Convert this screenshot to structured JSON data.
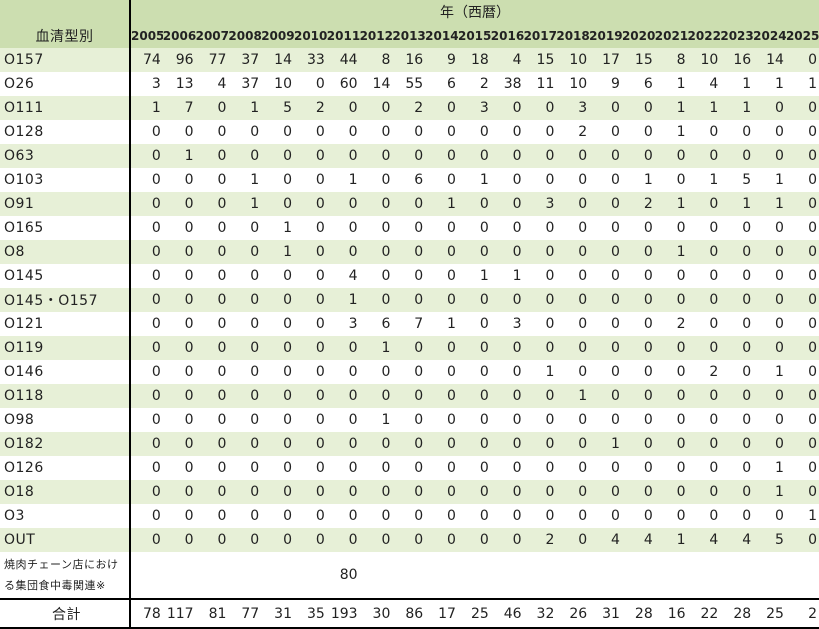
{
  "header": {
    "row_label": "血清型別",
    "group_label": "年（西暦）",
    "years": [
      "2005",
      "2006",
      "2007",
      "2008",
      "2009",
      "2010",
      "2011",
      "2012",
      "2013",
      "2014",
      "2015",
      "2016",
      "2017",
      "2018",
      "2019",
      "2020",
      "2021",
      "2022",
      "2023",
      "2024",
      "2025"
    ]
  },
  "rows": [
    {
      "label": "O157",
      "values": [
        "74",
        "96",
        "77",
        "37",
        "14",
        "33",
        "44",
        "8",
        "16",
        "9",
        "18",
        "4",
        "15",
        "10",
        "17",
        "15",
        "8",
        "10",
        "16",
        "14",
        "0"
      ]
    },
    {
      "label": "O26",
      "values": [
        "3",
        "13",
        "4",
        "37",
        "10",
        "0",
        "60",
        "14",
        "55",
        "6",
        "2",
        "38",
        "11",
        "10",
        "9",
        "6",
        "1",
        "4",
        "1",
        "1",
        "1"
      ]
    },
    {
      "label": "O111",
      "values": [
        "1",
        "7",
        "0",
        "1",
        "5",
        "2",
        "0",
        "0",
        "2",
        "0",
        "3",
        "0",
        "0",
        "3",
        "0",
        "0",
        "1",
        "1",
        "1",
        "0",
        "0"
      ]
    },
    {
      "label": "O128",
      "values": [
        "0",
        "0",
        "0",
        "0",
        "0",
        "0",
        "0",
        "0",
        "0",
        "0",
        "0",
        "0",
        "0",
        "2",
        "0",
        "0",
        "1",
        "0",
        "0",
        "0",
        "0"
      ]
    },
    {
      "label": "O63",
      "values": [
        "0",
        "1",
        "0",
        "0",
        "0",
        "0",
        "0",
        "0",
        "0",
        "0",
        "0",
        "0",
        "0",
        "0",
        "0",
        "0",
        "0",
        "0",
        "0",
        "0",
        "0"
      ]
    },
    {
      "label": "O103",
      "values": [
        "0",
        "0",
        "0",
        "1",
        "0",
        "0",
        "1",
        "0",
        "6",
        "0",
        "1",
        "0",
        "0",
        "0",
        "0",
        "1",
        "0",
        "1",
        "5",
        "1",
        "0"
      ]
    },
    {
      "label": "O91",
      "values": [
        "0",
        "0",
        "0",
        "1",
        "0",
        "0",
        "0",
        "0",
        "0",
        "1",
        "0",
        "0",
        "3",
        "0",
        "0",
        "2",
        "1",
        "0",
        "1",
        "1",
        "0"
      ]
    },
    {
      "label": "O165",
      "values": [
        "0",
        "0",
        "0",
        "0",
        "1",
        "0",
        "0",
        "0",
        "0",
        "0",
        "0",
        "0",
        "0",
        "0",
        "0",
        "0",
        "0",
        "0",
        "0",
        "0",
        "0"
      ]
    },
    {
      "label": "O8",
      "values": [
        "0",
        "0",
        "0",
        "0",
        "1",
        "0",
        "0",
        "0",
        "0",
        "0",
        "0",
        "0",
        "0",
        "0",
        "0",
        "0",
        "1",
        "0",
        "0",
        "0",
        "0"
      ]
    },
    {
      "label": "O145",
      "values": [
        "0",
        "0",
        "0",
        "0",
        "0",
        "0",
        "4",
        "0",
        "0",
        "0",
        "1",
        "1",
        "0",
        "0",
        "0",
        "0",
        "0",
        "0",
        "0",
        "0",
        "0"
      ]
    },
    {
      "label": "O145・O157",
      "values": [
        "0",
        "0",
        "0",
        "0",
        "0",
        "0",
        "1",
        "0",
        "0",
        "0",
        "0",
        "0",
        "0",
        "0",
        "0",
        "0",
        "0",
        "0",
        "0",
        "0",
        "0"
      ]
    },
    {
      "label": "O121",
      "values": [
        "0",
        "0",
        "0",
        "0",
        "0",
        "0",
        "3",
        "6",
        "7",
        "1",
        "0",
        "3",
        "0",
        "0",
        "0",
        "0",
        "2",
        "0",
        "0",
        "0",
        "0"
      ]
    },
    {
      "label": "O119",
      "values": [
        "0",
        "0",
        "0",
        "0",
        "0",
        "0",
        "0",
        "1",
        "0",
        "0",
        "0",
        "0",
        "0",
        "0",
        "0",
        "0",
        "0",
        "0",
        "0",
        "0",
        "0"
      ]
    },
    {
      "label": "O146",
      "values": [
        "0",
        "0",
        "0",
        "0",
        "0",
        "0",
        "0",
        "0",
        "0",
        "0",
        "0",
        "0",
        "1",
        "0",
        "0",
        "0",
        "0",
        "2",
        "0",
        "1",
        "0"
      ]
    },
    {
      "label": "O118",
      "values": [
        "0",
        "0",
        "0",
        "0",
        "0",
        "0",
        "0",
        "0",
        "0",
        "0",
        "0",
        "0",
        "0",
        "1",
        "0",
        "0",
        "0",
        "0",
        "0",
        "0",
        "0"
      ]
    },
    {
      "label": "O98",
      "values": [
        "0",
        "0",
        "0",
        "0",
        "0",
        "0",
        "0",
        "1",
        "0",
        "0",
        "0",
        "0",
        "0",
        "0",
        "0",
        "0",
        "0",
        "0",
        "0",
        "0",
        "0"
      ]
    },
    {
      "label": "O182",
      "values": [
        "0",
        "0",
        "0",
        "0",
        "0",
        "0",
        "0",
        "0",
        "0",
        "0",
        "0",
        "0",
        "0",
        "0",
        "1",
        "0",
        "0",
        "0",
        "0",
        "0",
        "0"
      ]
    },
    {
      "label": "O126",
      "values": [
        "0",
        "0",
        "0",
        "0",
        "0",
        "0",
        "0",
        "0",
        "0",
        "0",
        "0",
        "0",
        "0",
        "0",
        "0",
        "0",
        "0",
        "0",
        "0",
        "1",
        "0"
      ]
    },
    {
      "label": "O18",
      "values": [
        "0",
        "0",
        "0",
        "0",
        "0",
        "0",
        "0",
        "0",
        "0",
        "0",
        "0",
        "0",
        "0",
        "0",
        "0",
        "0",
        "0",
        "0",
        "0",
        "1",
        "0"
      ]
    },
    {
      "label": "O3",
      "values": [
        "0",
        "0",
        "0",
        "0",
        "0",
        "0",
        "0",
        "0",
        "0",
        "0",
        "0",
        "0",
        "0",
        "0",
        "0",
        "0",
        "0",
        "0",
        "0",
        "0",
        "1"
      ]
    },
    {
      "label": "OUT",
      "values": [
        "0",
        "0",
        "0",
        "0",
        "0",
        "0",
        "0",
        "0",
        "0",
        "0",
        "0",
        "0",
        "2",
        "0",
        "4",
        "4",
        "1",
        "4",
        "4",
        "5",
        "0"
      ]
    }
  ],
  "special_row": {
    "label": "焼肉チェーン店における集団食中毒関連※",
    "value": "80",
    "value_year": "2011"
  },
  "total_row": {
    "label": "合計",
    "values": [
      "78",
      "117",
      "81",
      "77",
      "31",
      "35",
      "193",
      "30",
      "86",
      "17",
      "25",
      "46",
      "32",
      "26",
      "31",
      "28",
      "16",
      "22",
      "28",
      "25",
      "2"
    ]
  }
}
